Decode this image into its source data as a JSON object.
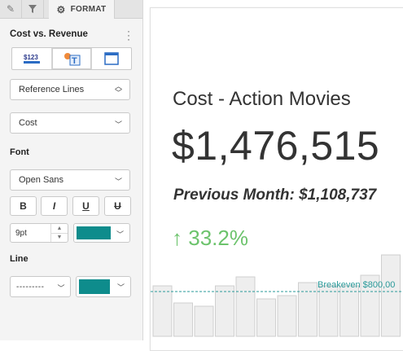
{
  "panel": {
    "tabs": {
      "format_label": "FORMAT"
    },
    "title": "Cost vs. Revenue",
    "viz_buttons": [
      {
        "name": "number-viz",
        "label": "$123"
      },
      {
        "name": "text-image-viz",
        "label": "T"
      },
      {
        "name": "card-viz",
        "label": ""
      }
    ],
    "reference_select": "Reference Lines",
    "measure_select": "Cost",
    "font_section": "Font",
    "font_family": "Open Sans",
    "format_buttons": [
      "B",
      "I",
      "U",
      "U"
    ],
    "font_size": "9pt",
    "font_color": "#0e8c8c",
    "line_section": "Line",
    "line_style": "---------",
    "line_color": "#0e8c8c"
  },
  "kpi": {
    "title": "Cost - Action Movies",
    "value": "$1,476,515",
    "previous": "Previous Month: $1,108,737",
    "change_arrow": "↑",
    "change": "33.2%",
    "change_color": "#6cc36c"
  },
  "chart_data": {
    "type": "bar",
    "values": [
      62,
      41,
      37,
      62,
      73,
      46,
      50,
      66,
      62,
      62,
      75,
      100
    ],
    "reference_line": {
      "label": "Breakeven $800,00",
      "value": 55
    },
    "bar_fill": "#eeeeee",
    "bar_stroke": "#cfcfcf",
    "line_color": "#2a9a9a"
  }
}
